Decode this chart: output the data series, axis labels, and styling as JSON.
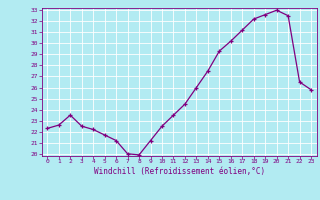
{
  "hours": [
    0,
    1,
    2,
    3,
    4,
    5,
    6,
    7,
    8,
    9,
    10,
    11,
    12,
    13,
    14,
    15,
    16,
    17,
    18,
    19,
    20,
    21,
    22,
    23
  ],
  "values": [
    22.3,
    22.6,
    23.5,
    22.5,
    22.2,
    21.7,
    21.2,
    20.0,
    19.9,
    21.2,
    22.5,
    23.5,
    24.5,
    26.0,
    27.5,
    29.3,
    30.2,
    31.2,
    32.2,
    32.6,
    33.0,
    32.5,
    26.5,
    25.8
  ],
  "xlabel": "Windchill (Refroidissement éolien,°C)",
  "ylim": [
    20,
    33
  ],
  "xlim": [
    -0.5,
    23.5
  ],
  "yticks": [
    20,
    21,
    22,
    23,
    24,
    25,
    26,
    27,
    28,
    29,
    30,
    31,
    32,
    33
  ],
  "xticks": [
    0,
    1,
    2,
    3,
    4,
    5,
    6,
    7,
    8,
    9,
    10,
    11,
    12,
    13,
    14,
    15,
    16,
    17,
    18,
    19,
    20,
    21,
    22,
    23
  ],
  "line_color": "#800080",
  "marker_color": "#800080",
  "bg_color": "#b2ebf2",
  "grid_color": "#ffffff",
  "tick_label_color": "#800080",
  "axis_label_color": "#800080"
}
